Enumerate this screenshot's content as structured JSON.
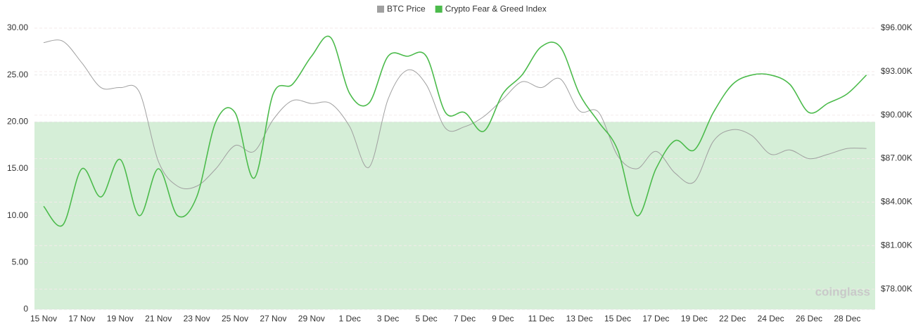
{
  "chart_data": {
    "type": "line",
    "categories": [
      "15 Nov",
      null,
      "17 Nov",
      null,
      "19 Nov",
      null,
      "21 Nov",
      null,
      "23 Nov",
      null,
      "25 Nov",
      null,
      "27 Nov",
      null,
      "29 Nov",
      null,
      "1 Dec",
      null,
      "3 Dec",
      null,
      "5 Dec",
      null,
      "7 Dec",
      null,
      "9 Dec",
      null,
      "11 Dec",
      null,
      "13 Dec",
      null,
      "15 Dec",
      null,
      "17 Dec",
      null,
      "19 Dec",
      null,
      "22 Dec",
      null,
      "24 Dec",
      null,
      "26 Dec",
      null,
      "28 Dec",
      null
    ],
    "series": [
      {
        "name": "BTC Price",
        "color": "#a0a0a0",
        "axis": "y2",
        "values": [
          95000,
          95100,
          93600,
          91900,
          91900,
          91600,
          86800,
          85100,
          85100,
          86300,
          87900,
          87500,
          89700,
          91000,
          90800,
          90800,
          89200,
          86400,
          91100,
          93100,
          92100,
          89100,
          89200,
          89900,
          91100,
          92300,
          91900,
          92500,
          90300,
          90200,
          87200,
          86300,
          87500,
          86000,
          85400,
          88200,
          89000,
          88600,
          87300,
          87600,
          87000,
          87300,
          87700,
          87700
        ]
      },
      {
        "name": "Crypto Fear & Greed Index",
        "color": "#4cbb4c",
        "values": [
          11,
          9,
          15,
          12,
          16,
          10,
          15,
          10,
          12,
          20,
          21,
          14,
          23,
          24,
          27,
          29,
          23,
          22,
          27,
          27,
          27,
          21,
          21,
          19,
          23,
          25,
          28,
          28,
          23,
          20,
          17,
          10,
          15,
          18,
          17,
          21,
          24,
          25,
          25,
          24,
          21,
          22,
          23,
          25
        ]
      }
    ],
    "ylim": [
      0,
      30
    ],
    "yticks": [
      0,
      {
        "value": 5,
        "label": "5.00"
      },
      {
        "value": 10,
        "label": "10.00"
      },
      {
        "value": 15,
        "label": "15.00"
      },
      {
        "value": 20,
        "label": "20.00"
      },
      {
        "value": 25,
        "label": "25.00"
      },
      {
        "value": 30,
        "label": "30.00"
      }
    ],
    "y2lim": [
      76600,
      96000
    ],
    "y2ticks": [
      {
        "value": 78000,
        "label": "$78.00K"
      },
      {
        "value": 81000,
        "label": "$81.00K"
      },
      {
        "value": 84000,
        "label": "$84.00K"
      },
      {
        "value": 87000,
        "label": "$87.00K"
      },
      {
        "value": 90000,
        "label": "$90.00K"
      },
      {
        "value": 93000,
        "label": "$93.00K"
      },
      {
        "value": 96000,
        "label": "$96.00K"
      }
    ],
    "shaded_band": {
      "range": [
        0,
        20
      ],
      "color": "#d5eed7"
    },
    "grid": true,
    "legend": "top",
    "watermark": "coinglass"
  }
}
